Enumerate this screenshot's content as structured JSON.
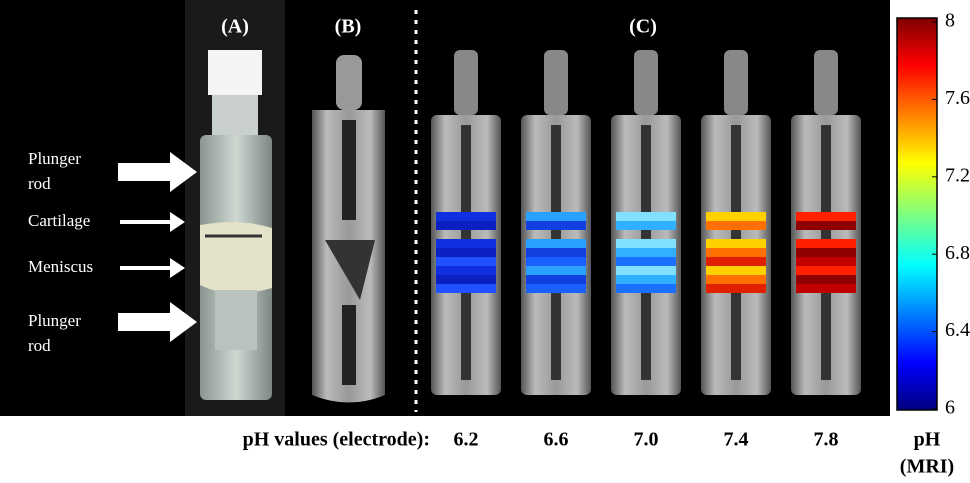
{
  "figure": {
    "panels": [
      "(A)",
      "(B)",
      "(C)"
    ],
    "annotations": [
      {
        "lines": [
          "Plunger",
          "rod"
        ]
      },
      {
        "lines": [
          "Cartilage"
        ]
      },
      {
        "lines": [
          "Meniscus"
        ]
      },
      {
        "lines": [
          "Plunger",
          "rod"
        ]
      }
    ],
    "row_label": "pH values (electrode):",
    "ph_values": [
      "6.2",
      "6.6",
      "7.0",
      "7.4",
      "7.8"
    ],
    "colorbar": {
      "ticks": [
        "8",
        "7.6",
        "7.2",
        "6.8",
        "6.4",
        "6"
      ],
      "label_lines": [
        "pH",
        "(MRI)"
      ]
    }
  }
}
